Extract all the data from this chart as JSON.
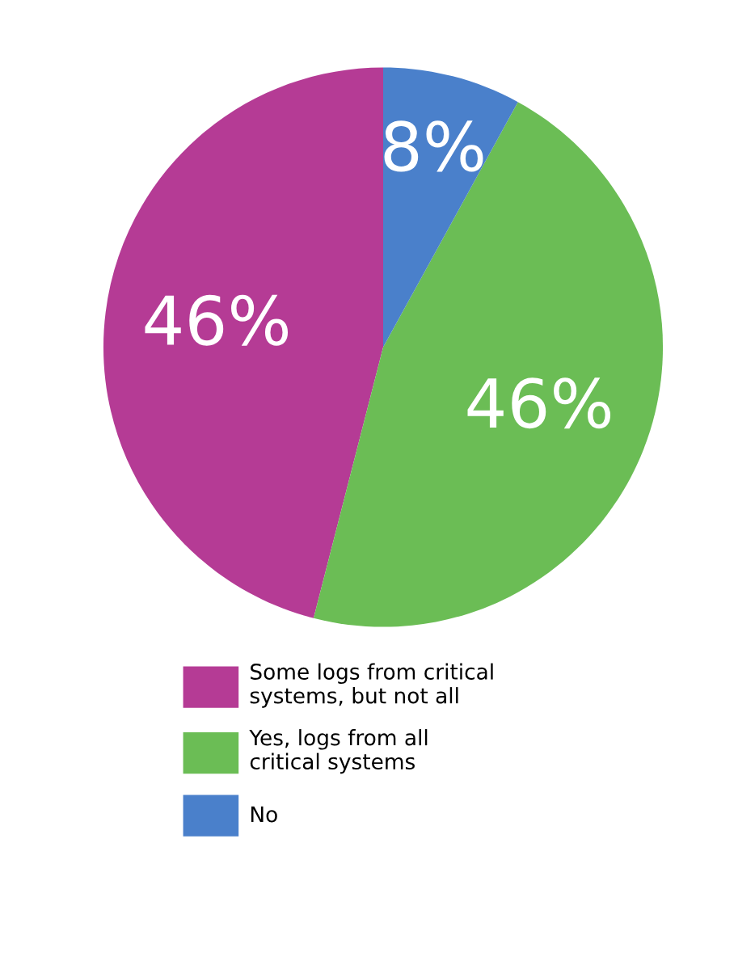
{
  "chart_data": {
    "type": "pie",
    "categories": [
      "Some logs from critical\nsystems, but not all",
      "Yes, logs from all\ncritical systems",
      "No"
    ],
    "values": [
      46,
      46,
      8
    ],
    "colors": [
      "#b53b95",
      "#6bbd55",
      "#4a80cb"
    ],
    "value_labels": [
      "46%",
      "46%",
      "8%"
    ],
    "legend": "bottom"
  }
}
